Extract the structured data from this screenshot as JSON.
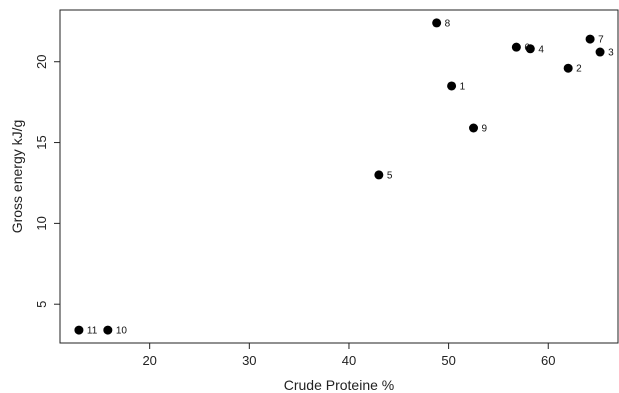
{
  "chart_data": {
    "type": "scatter",
    "title": "",
    "xlabel": "Crude Proteine %",
    "ylabel": "Gross energy kJ/g",
    "xlim": [
      11.0,
      67.0
    ],
    "ylim": [
      2.6,
      23.2
    ],
    "x_ticks": [
      "20",
      "30",
      "40",
      "50",
      "60"
    ],
    "y_ticks": [
      "5",
      "10",
      "15",
      "20"
    ],
    "grid": false,
    "legend": "none",
    "colors": {
      "point": "#000000",
      "axis": "#222222"
    },
    "points": [
      {
        "label": "1",
        "x": 50.3,
        "y": 18.5
      },
      {
        "label": "2",
        "x": 62.0,
        "y": 19.6
      },
      {
        "label": "3",
        "x": 65.2,
        "y": 20.6
      },
      {
        "label": "4",
        "x": 58.2,
        "y": 20.8
      },
      {
        "label": "5",
        "x": 43.0,
        "y": 13.0
      },
      {
        "label": "6",
        "x": 56.8,
        "y": 20.9
      },
      {
        "label": "7",
        "x": 64.2,
        "y": 21.4
      },
      {
        "label": "8",
        "x": 48.8,
        "y": 22.4
      },
      {
        "label": "9",
        "x": 52.5,
        "y": 15.9
      },
      {
        "label": "10",
        "x": 15.8,
        "y": 3.4
      },
      {
        "label": "11",
        "x": 12.9,
        "y": 3.4
      }
    ]
  }
}
